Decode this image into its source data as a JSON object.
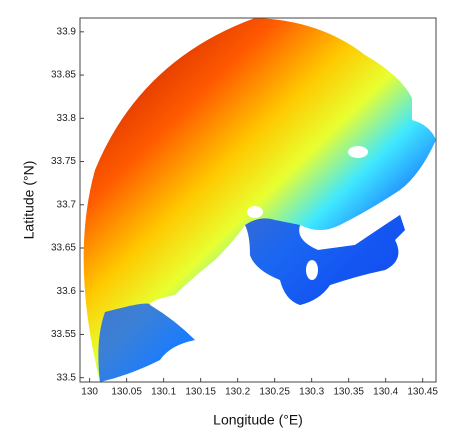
{
  "chart_data": {
    "type": "heatmap-field",
    "x_label": "Longitude (°E)",
    "y_label": "Latitude (°N)",
    "xlim": [
      129.987,
      130.468
    ],
    "ylim": [
      33.495,
      33.916
    ],
    "xticks": [
      130,
      130.05,
      130.1,
      130.15,
      130.2,
      130.25,
      130.3,
      130.35,
      130.4,
      130.45
    ],
    "yticks": [
      33.5,
      33.55,
      33.6,
      33.65,
      33.7,
      33.75,
      33.8,
      33.85,
      33.9
    ]
  }
}
